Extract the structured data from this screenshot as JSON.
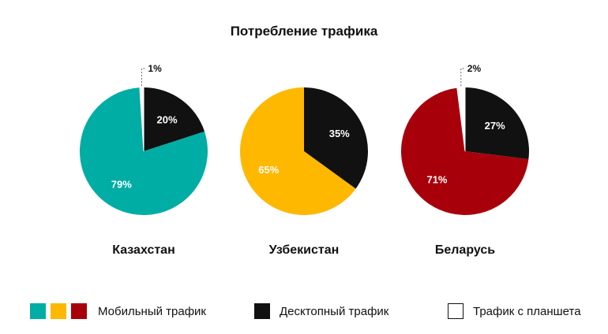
{
  "title": "Потребление трафика",
  "chart_data": [
    {
      "type": "pie",
      "name": "Казахстан",
      "slices": [
        {
          "category": "mobile",
          "value": 79,
          "label": "79%"
        },
        {
          "category": "tablet",
          "value": 1,
          "label": "1%"
        },
        {
          "category": "desktop",
          "value": 20,
          "label": "20%"
        }
      ]
    },
    {
      "type": "pie",
      "name": "Узбекистан",
      "slices": [
        {
          "category": "mobile",
          "value": 65,
          "label": "65%"
        },
        {
          "category": "desktop",
          "value": 35,
          "label": "35%"
        }
      ]
    },
    {
      "type": "pie",
      "name": "Беларусь",
      "slices": [
        {
          "category": "mobile",
          "value": 71,
          "label": "71%"
        },
        {
          "category": "tablet",
          "value": 2,
          "label": "2%"
        },
        {
          "category": "desktop",
          "value": 27,
          "label": "27%"
        }
      ]
    }
  ],
  "colors": {
    "mobile": [
      "#00ADA5",
      "#FFB800",
      "#A8000B"
    ],
    "desktop": "#111111",
    "tablet": "#FFFFFF"
  },
  "legend": {
    "mobile": "Мобильный трафик",
    "desktop": "Десктопный трафик",
    "tablet": "Трафик с планшета"
  }
}
